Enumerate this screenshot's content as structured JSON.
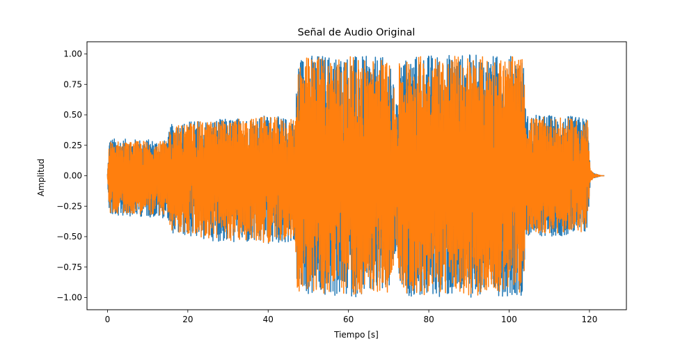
{
  "chart_data": {
    "type": "line",
    "title": "Señal de Audio Original",
    "xlabel": "Tiempo [s]",
    "ylabel": "Amplitud",
    "xlim": [
      -5.1,
      129.2
    ],
    "ylim": [
      -1.1,
      1.1
    ],
    "x_ticks": [
      0,
      20,
      40,
      60,
      80,
      100,
      120
    ],
    "x_tick_labels": [
      "0",
      "20",
      "40",
      "60",
      "80",
      "100",
      "120"
    ],
    "y_ticks": [
      1.0,
      0.75,
      0.5,
      0.25,
      0.0,
      -0.25,
      -0.5,
      -0.75,
      -1.0
    ],
    "y_tick_labels": [
      "1.00",
      "0.75",
      "0.50",
      "0.25",
      "0.00",
      "−0.25",
      "−0.50",
      "−0.75",
      "−1.00"
    ],
    "grid": false,
    "legend": "none",
    "series": [
      {
        "color": "#1f77b4",
        "envelope": {
          "x": [
            0,
            0.5,
            5,
            10,
            15,
            15.6,
            20,
            25,
            30,
            35,
            40,
            45,
            46.8,
            47.3,
            50,
            55,
            60,
            65,
            70,
            72.2,
            72.6,
            75,
            80,
            85,
            90,
            95,
            100,
            103.5,
            104.2,
            110,
            115,
            119.5,
            120.2,
            121,
            123
          ],
          "upper": [
            0.02,
            0.31,
            0.3,
            0.3,
            0.29,
            0.42,
            0.45,
            0.46,
            0.47,
            0.48,
            0.5,
            0.47,
            0.48,
            0.98,
            1.0,
            1.0,
            0.99,
            0.98,
            0.97,
            0.58,
            0.94,
            0.99,
            1.0,
            1.0,
            1.0,
            0.99,
            0.99,
            0.98,
            0.5,
            0.5,
            0.49,
            0.48,
            0.05,
            0.02,
            0.0
          ],
          "lower": [
            -0.02,
            -0.34,
            -0.33,
            -0.34,
            -0.35,
            -0.47,
            -0.5,
            -0.53,
            -0.55,
            -0.56,
            -0.57,
            -0.55,
            -0.58,
            -0.98,
            -0.99,
            -1.0,
            -1.0,
            -0.99,
            -0.97,
            -0.6,
            -0.95,
            -0.99,
            -1.0,
            -1.0,
            -1.0,
            -0.99,
            -0.99,
            -0.98,
            -0.5,
            -0.5,
            -0.49,
            -0.48,
            -0.05,
            -0.02,
            0.0
          ]
        }
      },
      {
        "color": "#ff7f0e",
        "envelope": {
          "x": [
            0,
            0.5,
            5,
            10,
            15,
            15.6,
            20,
            25,
            30,
            35,
            40,
            45,
            46.8,
            47.3,
            50,
            55,
            60,
            65,
            70,
            72.2,
            72.6,
            75,
            80,
            85,
            90,
            95,
            100,
            103.5,
            104.2,
            110,
            115,
            119.5,
            120.2,
            121,
            123
          ],
          "upper": [
            0.02,
            0.29,
            0.28,
            0.29,
            0.28,
            0.4,
            0.44,
            0.45,
            0.46,
            0.47,
            0.49,
            0.46,
            0.47,
            0.96,
            0.98,
            0.99,
            0.98,
            0.97,
            0.96,
            0.56,
            0.92,
            0.98,
            0.99,
            0.99,
            0.99,
            0.98,
            0.98,
            0.97,
            0.48,
            0.48,
            0.47,
            0.46,
            0.05,
            0.02,
            0.0
          ],
          "lower": [
            -0.02,
            -0.31,
            -0.31,
            -0.32,
            -0.33,
            -0.45,
            -0.49,
            -0.52,
            -0.53,
            -0.54,
            -0.55,
            -0.53,
            -0.56,
            -0.96,
            -0.97,
            -0.98,
            -0.98,
            -0.97,
            -0.96,
            -0.58,
            -0.93,
            -0.97,
            -0.98,
            -0.98,
            -0.99,
            -0.97,
            -0.97,
            -0.96,
            -0.48,
            -0.48,
            -0.47,
            -0.46,
            -0.05,
            -0.02,
            0.0
          ]
        }
      }
    ]
  }
}
